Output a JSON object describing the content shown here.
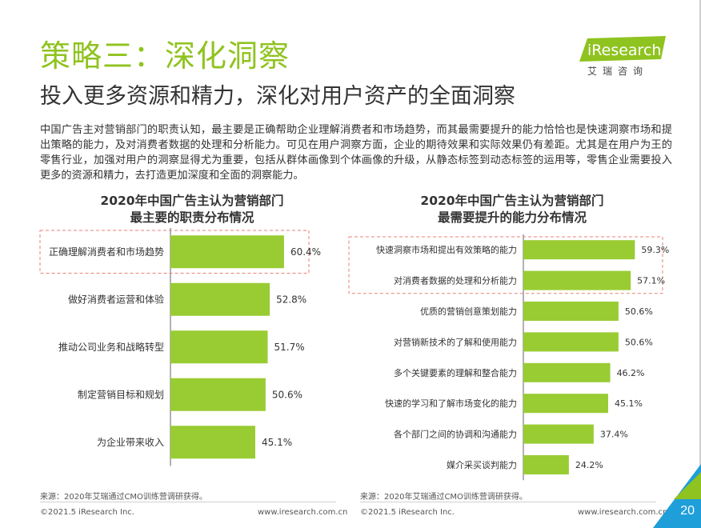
{
  "header": {
    "title": "策略三：深化洞察",
    "subtitle": "投入更多资源和精力，深化对用户资产的全面洞察"
  },
  "logo": {
    "brand": "iResearch",
    "brand_cn": "艾瑞咨询"
  },
  "intro_text": "中国广告主对营销部门的职责认知，最主要是正确帮助企业理解消费者和市场趋势，而其最需要提升的能力恰恰也是快速洞察市场和提出策略的能力，及对消费者数据的处理和分析能力。可见在用户洞察方面，企业的期待效果和实际效果仍有差距。尤其是在用户为王的零售行业，加强对用户的洞察显得尤为重要，包括从群体画像到个体画像的升级，从静态标签到动态标签的运用等，零售企业需要投入更多的资源和精力，去打造更加深度和全面的洞察能力。",
  "colors": {
    "accent_green": "#8fc31f",
    "bar_green": "#99cc33",
    "highlight_dash": "#e8827a",
    "corner_blue": "#1e9fd9"
  },
  "chart_data": [
    {
      "type": "bar",
      "orientation": "horizontal",
      "title": "2020年中国广告主认为营销部门\n最主要的职责分布情况",
      "categories": [
        "正确理解消费者和市场趋势",
        "做好消费者运营和体验",
        "推动公司业务和战略转型",
        "制定营销目标和规划",
        "为企业带来收入"
      ],
      "values": [
        60.4,
        52.8,
        51.7,
        50.6,
        45.1
      ],
      "labels": [
        "60.4%",
        "52.8%",
        "51.7%",
        "50.6%",
        "45.1%"
      ],
      "unit": "%",
      "highlighted": [
        "正确理解消费者和市场趋势"
      ],
      "grid": false
    },
    {
      "type": "bar",
      "orientation": "horizontal",
      "title": "2020年中国广告主认为营销部门\n最需要提升的能力分布情况",
      "categories": [
        "快速洞察市场和提出有效策略的能力",
        "对消费者数据的处理和分析能力",
        "优质的营销创意策划能力",
        "对营销新技术的了解和使用能力",
        "多个关键要素的理解和整合能力",
        "快速的学习和了解市场变化的能力",
        "各个部门之间的协调和沟通能力",
        "媒介采买谈判能力"
      ],
      "values": [
        59.3,
        57.1,
        50.6,
        50.6,
        46.2,
        45.1,
        37.4,
        24.2
      ],
      "labels": [
        "59.3%",
        "57.1%",
        "50.6%",
        "50.6%",
        "46.2%",
        "45.1%",
        "37.4%",
        "24.2%"
      ],
      "unit": "%",
      "highlighted": [
        "快速洞察市场和提出有效策略的能力",
        "对消费者数据的处理和分析能力"
      ],
      "grid": false
    }
  ],
  "footer": {
    "source_left": "来源：2020年艾瑞通过CMO训练营调研获得。",
    "source_right": "来源：2020年艾瑞通过CMO训练营调研获得。",
    "copyright_left": "©2021.5 iResearch Inc.",
    "url_left": "www.iresearch.com.cn",
    "copyright_right": "©2021.5 iResearch Inc.",
    "url_right": "www.iresearch.com.cn",
    "page_number": "20"
  }
}
